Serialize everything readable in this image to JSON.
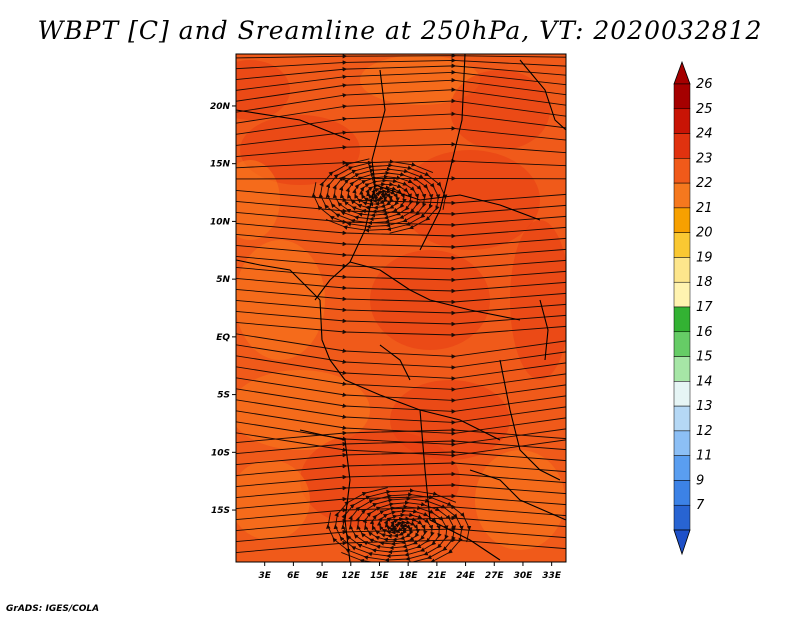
{
  "title": "WBPT [C] and Sreamline at 250hPa, VT: 2020032812",
  "credit": "GrADS: IGES/COLA",
  "map": {
    "lat_labels": [
      "20N",
      "15N",
      "10N",
      "5N",
      "EQ",
      "5S",
      "10S",
      "15S"
    ],
    "lat_values": [
      20,
      15,
      10,
      5,
      0,
      -5,
      -10,
      -15
    ],
    "lon_labels": [
      "3E",
      "6E",
      "9E",
      "12E",
      "15E",
      "18E",
      "21E",
      "24E",
      "27E",
      "30E",
      "33E"
    ],
    "lon_values": [
      3,
      6,
      9,
      12,
      15,
      18,
      21,
      24,
      27,
      30,
      33
    ],
    "lon_range": [
      0,
      34.5
    ],
    "lat_range": [
      -19.5,
      24.5
    ],
    "field_colors": {
      "base": "#f05a1a",
      "warm": "#e83e14",
      "cool": "#f97a1e"
    },
    "streamline_color": "#1a0a05",
    "border_color": "#000000"
  },
  "colorbar": {
    "levels": [
      "26",
      "25",
      "24",
      "23",
      "22",
      "21",
      "20",
      "19",
      "18",
      "17",
      "16",
      "15",
      "14",
      "13",
      "12",
      "11",
      "9",
      "7"
    ],
    "colors": [
      "#a50000",
      "#c81405",
      "#e0320f",
      "#f05a1a",
      "#f5781e",
      "#f7a000",
      "#fac832",
      "#fde68c",
      "#fff3b0",
      "#33b233",
      "#66cc66",
      "#a6e6a6",
      "#e6f5f5",
      "#b5d8f5",
      "#8cbff5",
      "#5a9ef0",
      "#3c82e6",
      "#2864d2"
    ],
    "top_color": "#a50000",
    "bottom_color": "#1e50c8"
  }
}
